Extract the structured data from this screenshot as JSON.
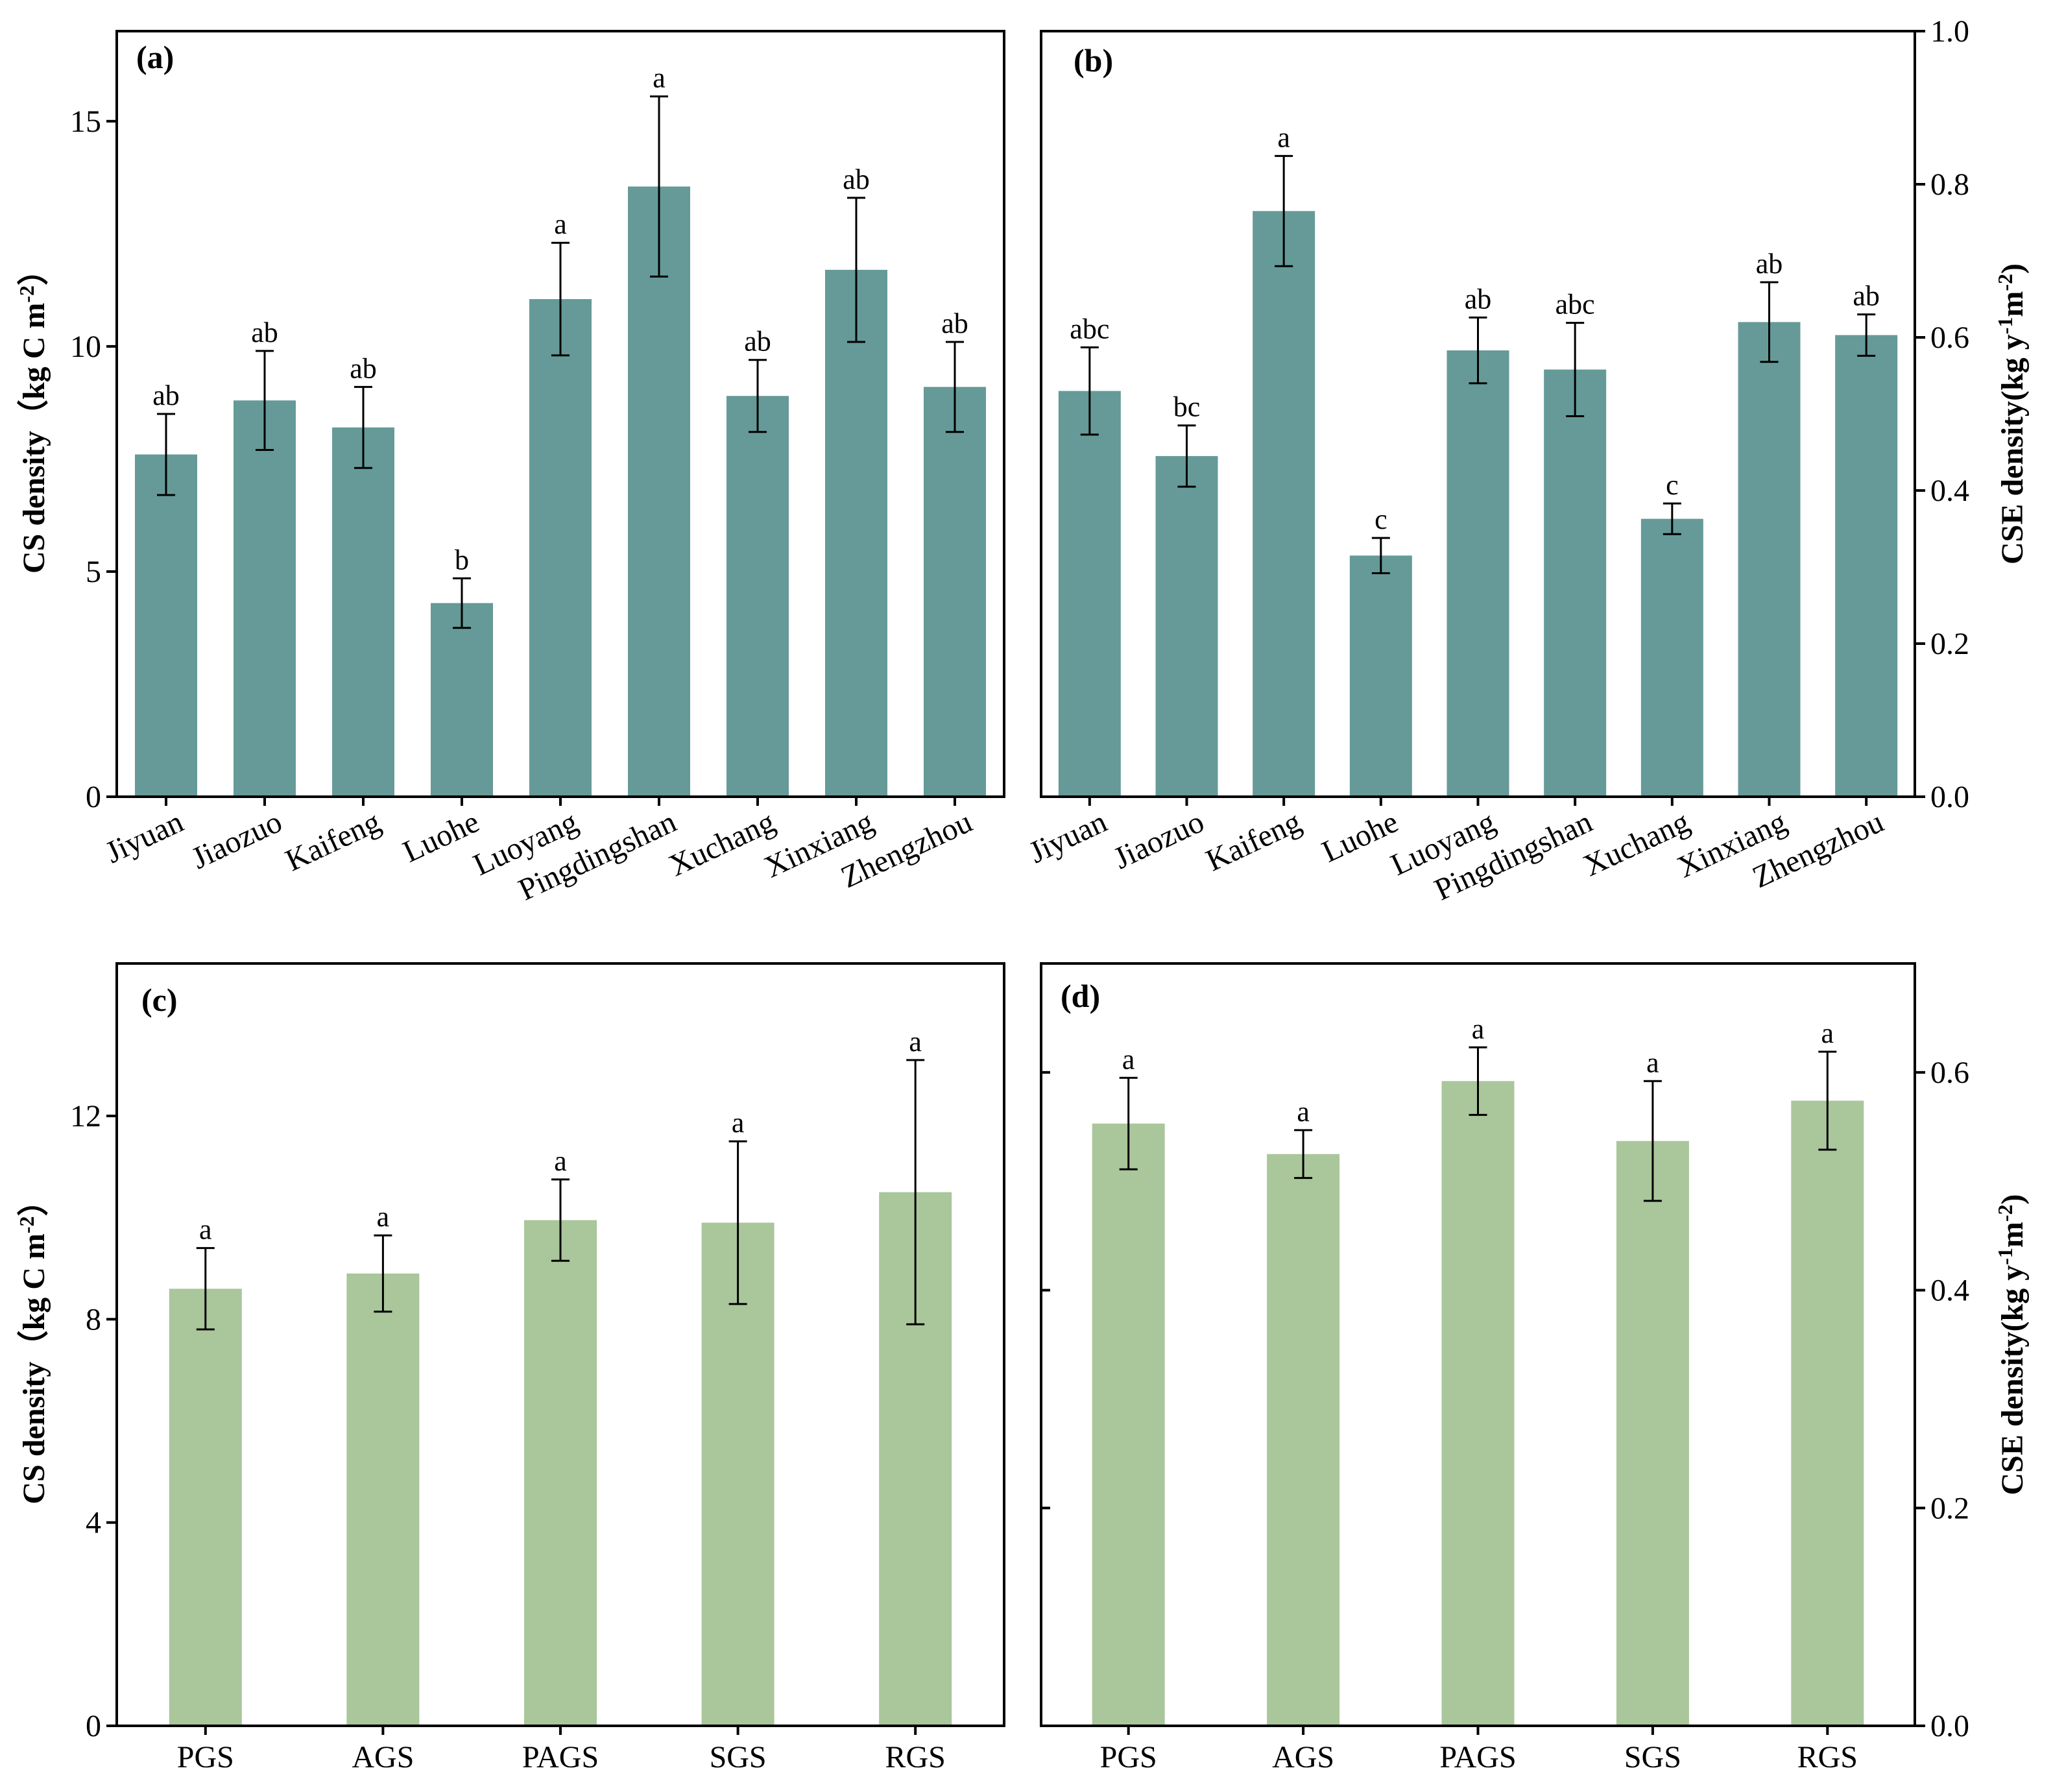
{
  "colors": {
    "panel_ab_bar": "#659a98",
    "panel_cd_bar": "#aac69b",
    "axis": "#000000"
  },
  "chart_data": [
    {
      "id": "a",
      "type": "bar",
      "panel_label": "(a)",
      "categories": [
        "Jiyuan",
        "Jiaozuo",
        "Kaifeng",
        "Luohe",
        "Luoyang",
        "Pingdingshan",
        "Xuchang",
        "Xinxiang",
        "Zhengzhou"
      ],
      "values": [
        7.6,
        8.8,
        8.2,
        4.3,
        11.05,
        13.55,
        8.9,
        11.7,
        9.1
      ],
      "errors": [
        0.9,
        1.1,
        0.9,
        0.55,
        1.25,
        2.0,
        0.8,
        1.6,
        1.0
      ],
      "letters": [
        "ab",
        "ab",
        "ab",
        "b",
        "a",
        "a",
        "ab",
        "ab",
        "ab"
      ],
      "ylabel": "CS density（kg C m",
      "ylabel_sup": "-2",
      "ylabel_end": "）",
      "ylim": [
        0,
        17
      ],
      "yticks": [
        0,
        5,
        10,
        15
      ],
      "ytick_labels": [
        "0",
        "5",
        "10",
        "15"
      ],
      "y_axis_side": "left",
      "rotate_x_labels": true,
      "color": "#659a98"
    },
    {
      "id": "b",
      "type": "bar",
      "panel_label": "(b)",
      "categories": [
        "Jiyuan",
        "Jiaozuo",
        "Kaifeng",
        "Luohe",
        "Luoyang",
        "Pingdingshan",
        "Xuchang",
        "Xinxiang",
        "Zhengzhou"
      ],
      "values": [
        0.53,
        0.445,
        0.765,
        0.315,
        0.583,
        0.558,
        0.363,
        0.62,
        0.603
      ],
      "errors": [
        0.057,
        0.04,
        0.072,
        0.023,
        0.043,
        0.061,
        0.02,
        0.052,
        0.027
      ],
      "letters": [
        "abc",
        "bc",
        "a",
        "c",
        "ab",
        "abc",
        "c",
        "ab",
        "ab"
      ],
      "ylabel": "CSE density(kg y",
      "ylabel_sup": "-1",
      "ylabel_mid": "m",
      "ylabel_sup2": "-2",
      "ylabel_end": ")",
      "ylim": [
        0,
        1.0
      ],
      "yticks": [
        0,
        0.2,
        0.4,
        0.6,
        0.8,
        1.0
      ],
      "ytick_labels": [
        "0.0",
        "0.2",
        "0.4",
        "0.6",
        "0.8",
        "1.0"
      ],
      "y_axis_side": "right",
      "rotate_x_labels": true,
      "color": "#659a98"
    },
    {
      "id": "c",
      "type": "bar",
      "panel_label": "(c)",
      "categories": [
        "PGS",
        "AGS",
        "PAGS",
        "SGS",
        "RGS"
      ],
      "values": [
        8.6,
        8.9,
        9.95,
        9.9,
        10.5
      ],
      "errors": [
        0.8,
        0.75,
        0.8,
        1.6,
        2.6
      ],
      "letters": [
        "a",
        "a",
        "a",
        "a",
        "a"
      ],
      "ylabel": "CS density（kg C m",
      "ylabel_sup": "-2",
      "ylabel_end": "）",
      "ylim": [
        0,
        15
      ],
      "yticks": [
        0,
        4,
        8,
        12
      ],
      "ytick_labels": [
        "0",
        "4",
        "8",
        "12"
      ],
      "y_axis_side": "left",
      "rotate_x_labels": false,
      "color": "#aac69b"
    },
    {
      "id": "d",
      "type": "bar",
      "panel_label": "(d)",
      "categories": [
        "PGS",
        "AGS",
        "PAGS",
        "SGS",
        "RGS"
      ],
      "values": [
        0.553,
        0.525,
        0.592,
        0.537,
        0.574
      ],
      "errors": [
        0.042,
        0.022,
        0.031,
        0.055,
        0.045
      ],
      "letters": [
        "a",
        "a",
        "a",
        "a",
        "a"
      ],
      "ylabel": "CSE density(kg y",
      "ylabel_sup": "-1",
      "ylabel_mid": "m",
      "ylabel_sup2": "-2",
      "ylabel_end": ")",
      "ylim": [
        0,
        0.7
      ],
      "yticks": [
        0,
        0.2,
        0.4,
        0.6
      ],
      "ytick_labels": [
        "0.0",
        "0.2",
        "0.4",
        "0.6"
      ],
      "y_axis_side": "right",
      "rotate_x_labels": false,
      "color": "#aac69b"
    }
  ]
}
